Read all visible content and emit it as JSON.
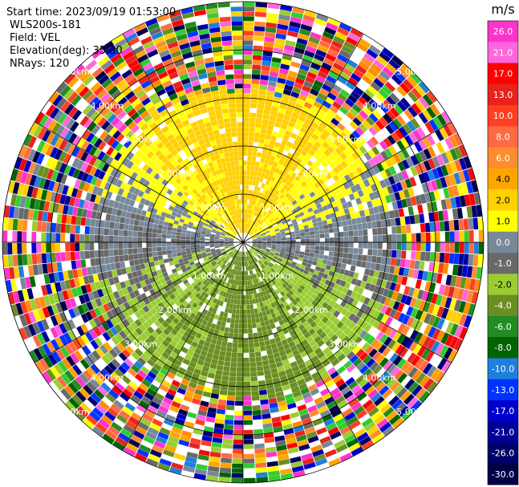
{
  "header": {
    "start_time": "Start time: 2023/09/19 01:53:00",
    "instrument": "WLS200s-181",
    "field": "Field: VEL",
    "elevation": "Elevation(deg): 35.30",
    "nrays": "NRays: 120"
  },
  "chart_data": {
    "type": "heatmap",
    "projection": "polar-ppi",
    "field": "VEL",
    "units": "m/s",
    "n_rays": 120,
    "max_range_km": 5.0,
    "range_ring_labels": [
      "1.00km",
      "2.00km",
      "3.00km",
      "4.00km",
      "5.00km"
    ],
    "colorbar": {
      "unit_label": "m/s",
      "ticks": [
        "26.0",
        "21.0",
        "17.0",
        "13.0",
        "10.0",
        "8.0",
        "6.0",
        "4.0",
        "2.0",
        "1.0",
        "0.0",
        "-1.0",
        "-2.0",
        "-4.0",
        "-6.0",
        "-8.0",
        "-10.0",
        "-13.0",
        "-17.0",
        "-21.0",
        "-26.0",
        "-30.0"
      ],
      "colors": [
        "#ff33cc",
        "#ff66dd",
        "#ff0000",
        "#e8231e",
        "#ff3f20",
        "#ff6a40",
        "#ff8c2e",
        "#ffa500",
        "#ffd000",
        "#ffff00",
        "#778899",
        "#696969",
        "#9acd32",
        "#6b8e23",
        "#228b22",
        "#006400",
        "#1e7fdc",
        "#0033ff",
        "#0000cd",
        "#000099",
        "#00006b",
        "#00004a"
      ]
    },
    "pattern_description": {
      "near_range_limit_km": 3.2,
      "north_sector": "positive velocities 1–4 m/s (yellow/orange)",
      "south_sector": "negative velocities -1 to -6 m/s (olive/green)",
      "east_west_band": "near-zero velocities (gray)",
      "outer_range": "noisy / random velocities"
    }
  }
}
